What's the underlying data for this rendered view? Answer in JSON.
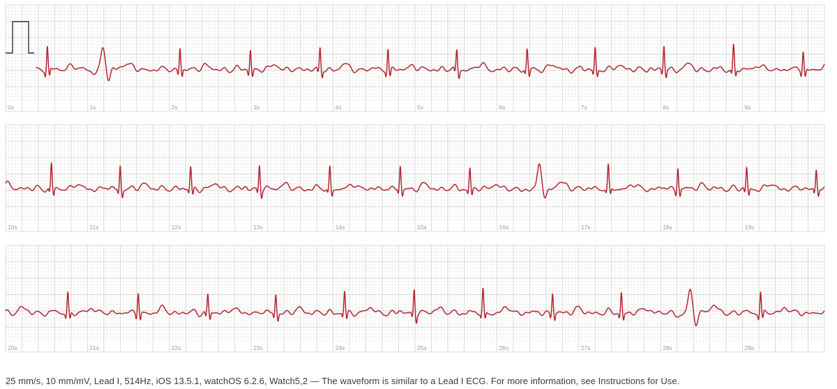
{
  "chart_data": {
    "type": "line",
    "title": "",
    "xlabel": "",
    "ylabel": "",
    "rows": [
      {
        "start": 0,
        "end": 10,
        "tick_labels": [
          "0s",
          "1s",
          "2s",
          "3s",
          "4s",
          "5s",
          "6s",
          "7s",
          "8s",
          "9s"
        ]
      },
      {
        "start": 10,
        "end": 20,
        "tick_labels": [
          "10s",
          "11s",
          "12s",
          "13s",
          "14s",
          "15s",
          "16s",
          "17s",
          "18s",
          "19s"
        ]
      },
      {
        "start": 20,
        "end": 30,
        "tick_labels": [
          "20s",
          "21s",
          "22s",
          "23s",
          "24s",
          "25s",
          "26s",
          "27s",
          "28s",
          "29s"
        ]
      }
    ],
    "series": [
      {
        "color": "#b5242e",
        "signal_start_s": 0.37,
        "r_peaks_s": [
          0.51,
          1.19,
          2.13,
          2.99,
          3.84,
          4.67,
          5.51,
          6.37,
          7.2,
          8.04,
          8.89,
          9.74,
          10.56,
          11.4,
          12.26,
          13.1,
          13.96,
          14.82,
          15.67,
          16.52,
          17.36,
          18.21,
          19.05,
          19.9,
          20.76,
          21.62,
          22.47,
          23.3,
          24.14,
          24.99,
          25.83,
          26.68,
          27.52,
          28.36,
          29.22
        ],
        "r_amplitude_mv": 0.9,
        "wide_beats_s": [
          1.19,
          16.52,
          28.36
        ]
      }
    ],
    "calibration_pulse_mv": 1.0
  },
  "colors": {
    "grid_minor": "#ececec",
    "grid_major": "#d2d2d2",
    "trace": "#b5242e",
    "calibration": "#333333"
  },
  "footer": {
    "text": "25 mm/s, 10 mm/mV, Lead I, 514Hz, iOS 13.5.1, watchOS 6.2.6, Watch5,2 — The waveform is similar to a Lead I ECG. For more information, see Instructions for Use."
  }
}
